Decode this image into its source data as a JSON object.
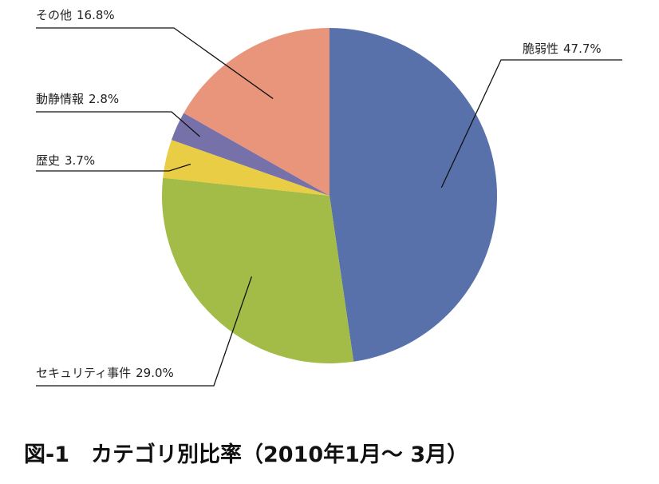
{
  "chart_data": {
    "type": "pie",
    "title": "図-1　カテゴリ別比率（2010年1月～ 3月）",
    "categories": [
      "脆弱性",
      "セキュリティ事件",
      "歴史",
      "動静情報",
      "その他"
    ],
    "values": [
      47.7,
      29,
      3.7,
      2.8,
      16.8
    ],
    "value_labels": [
      "47.7%",
      "29.0%",
      "3.7%",
      "2.8%",
      "16.8%"
    ],
    "colors": [
      "#5871aa",
      "#a3bb47",
      "#e9cd45",
      "#7771a9",
      "#e9957b"
    ]
  }
}
